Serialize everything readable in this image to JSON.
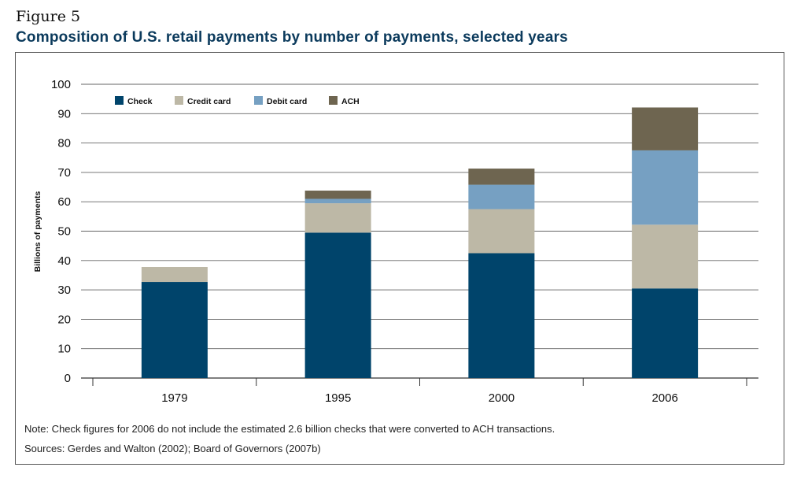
{
  "figure_label": "Figure 5",
  "title": "Composition of U.S. retail payments by number of payments, selected years",
  "note": "Note: Check figures for 2006 do not include the estimated 2.6 billion checks that were converted to ACH transactions.",
  "sources": "Sources: Gerdes and Walton (2002); Board of Governors (2007b)",
  "chart_data": {
    "type": "bar",
    "stacked": true,
    "categories": [
      "1979",
      "1995",
      "2000",
      "2006"
    ],
    "series": [
      {
        "name": "Check",
        "color": "#00446b",
        "values": [
          32.7,
          49.5,
          42.5,
          30.5
        ]
      },
      {
        "name": "Credit card",
        "color": "#bdb8a6",
        "values": [
          5.1,
          10.0,
          15.0,
          21.7
        ]
      },
      {
        "name": "Debit card",
        "color": "#76a0c2",
        "values": [
          0.0,
          1.5,
          8.3,
          25.3
        ]
      },
      {
        "name": "ACH",
        "color": "#6e6550",
        "values": [
          0.0,
          2.8,
          5.5,
          14.6
        ]
      }
    ],
    "ylabel": "Billions of payments",
    "xlabel": "",
    "ylim": [
      0,
      100
    ],
    "yticks": [
      0,
      10,
      20,
      30,
      40,
      50,
      60,
      70,
      80,
      90,
      100
    ],
    "grid": true,
    "legend_position": "top-left"
  }
}
